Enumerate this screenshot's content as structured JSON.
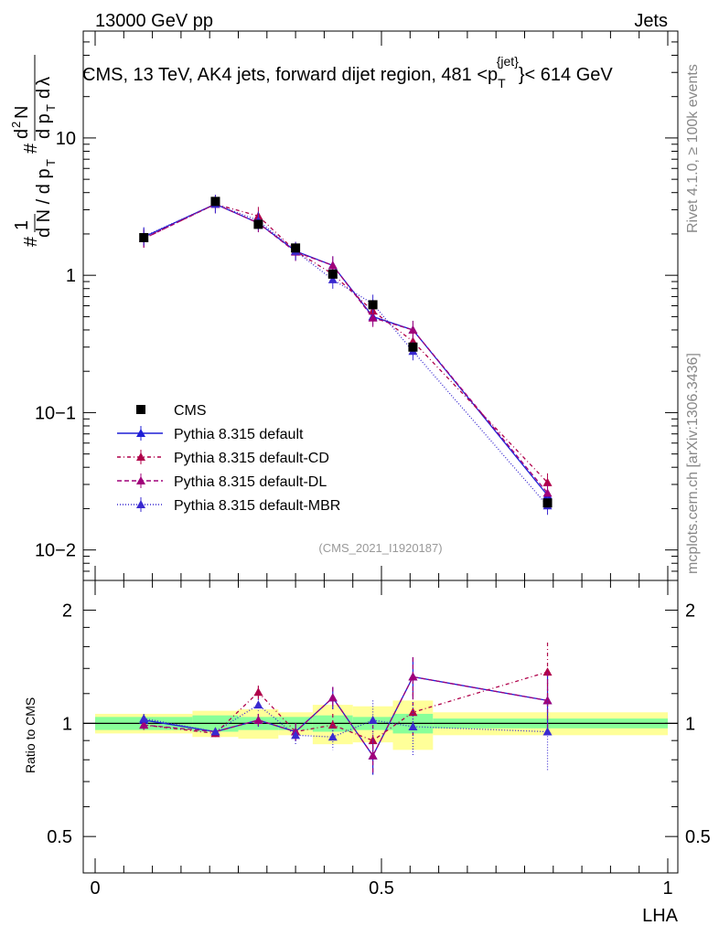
{
  "header": {
    "beam": "13000 GeV pp",
    "category": "Jets",
    "title": "CMS, 13 TeV, AK4 jets, forward dijet region, 481 <p",
    "title_sub": "T",
    "title_sup": "{jet}",
    "title_tail": "}< 614 GeV"
  },
  "side": {
    "rivet": "Rivet 4.1.0, ≥ 100k events",
    "mcplots": "mcplots.cern.ch [arXiv:1306.3436]"
  },
  "analysis_id": "(CMS_2021_I1920187)",
  "axes": {
    "ylabel_main": "1/N dN/dp_T dλ",
    "ylabel_ratio": "Ratio to CMS",
    "xlabel": "LHA",
    "main_ticks": [
      "10−2",
      "10−1",
      "1",
      "10"
    ],
    "ratio_ticks": [
      "0.5",
      "1",
      "2"
    ],
    "x_ticks": [
      "0",
      "0.5",
      "1"
    ]
  },
  "legend": [
    {
      "label": "CMS",
      "color": "#000000",
      "marker": "square",
      "dash": ""
    },
    {
      "label": "Pythia 8.315 default",
      "color": "#1f1fd6",
      "marker": "triangle",
      "dash": ""
    },
    {
      "label": "Pythia 8.315 default-CD",
      "color": "#b0004a",
      "marker": "triangle",
      "dash": "4,3,1,3"
    },
    {
      "label": "Pythia 8.315 default-DL",
      "color": "#a0007a",
      "marker": "triangle",
      "dash": "5,3"
    },
    {
      "label": "Pythia 8.315 default-MBR",
      "color": "#3a2ad0",
      "marker": "triangle",
      "dash": "1,2"
    }
  ],
  "chart_data": {
    "type": "line",
    "xlim": [
      0,
      1
    ],
    "ylim_main": [
      0.006,
      60
    ],
    "ylim_ratio": [
      0.4,
      2.4
    ],
    "x": [
      0.085,
      0.21,
      0.285,
      0.35,
      0.415,
      0.485,
      0.555,
      0.79
    ],
    "data": {
      "name": "CMS",
      "values": [
        1.88,
        3.45,
        2.35,
        1.58,
        1.02,
        0.61,
        0.3,
        0.022
      ],
      "band_x": [
        [
          0.0,
          0.17
        ],
        [
          0.17,
          0.25
        ],
        [
          0.25,
          0.32
        ],
        [
          0.32,
          0.38
        ],
        [
          0.38,
          0.45
        ],
        [
          0.45,
          0.52
        ],
        [
          0.52,
          0.59
        ],
        [
          0.59,
          1.0
        ]
      ],
      "band_stat": [
        0.04,
        0.05,
        0.04,
        0.04,
        0.05,
        0.04,
        0.06,
        0.03
      ],
      "band_tot": [
        0.06,
        0.08,
        0.09,
        0.07,
        0.12,
        0.11,
        0.15,
        0.07
      ]
    },
    "series": [
      {
        "name": "Pythia 8.315 default",
        "main": [
          1.9,
          3.3,
          2.4,
          1.5,
          1.18,
          0.5,
          0.4,
          0.025
        ],
        "ratio": [
          1.02,
          0.95,
          1.02,
          0.95,
          1.17,
          0.82,
          1.33,
          1.15
        ],
        "ratio_err": [
          0.03,
          0.02,
          0.04,
          0.05,
          0.08,
          0.09,
          0.17,
          0.22
        ]
      },
      {
        "name": "Pythia 8.315 default-CD",
        "main": [
          1.85,
          3.3,
          2.7,
          1.5,
          1.02,
          0.55,
          0.33,
          0.031
        ],
        "ratio": [
          0.99,
          0.94,
          1.21,
          0.95,
          0.99,
          0.9,
          1.07,
          1.37
        ],
        "ratio_err": [
          0.03,
          0.02,
          0.05,
          0.05,
          0.07,
          0.09,
          0.14,
          0.27
        ]
      },
      {
        "name": "Pythia 8.315 default-DL",
        "main": [
          1.85,
          3.3,
          2.4,
          1.48,
          1.18,
          0.49,
          0.4,
          0.026
        ],
        "ratio": [
          0.99,
          0.95,
          1.02,
          0.95,
          1.17,
          0.82,
          1.33,
          1.15
        ],
        "ratio_err": [
          0.03,
          0.02,
          0.04,
          0.05,
          0.08,
          0.09,
          0.17,
          0.22
        ]
      },
      {
        "name": "Pythia 8.315 default-MBR",
        "main": [
          1.92,
          3.3,
          2.5,
          1.5,
          0.93,
          0.62,
          0.28,
          0.021
        ],
        "ratio": [
          1.03,
          0.95,
          1.12,
          0.93,
          0.92,
          1.02,
          0.98,
          0.95
        ],
        "ratio_err": [
          0.03,
          0.02,
          0.04,
          0.05,
          0.07,
          0.13,
          0.16,
          0.2
        ]
      }
    ]
  }
}
